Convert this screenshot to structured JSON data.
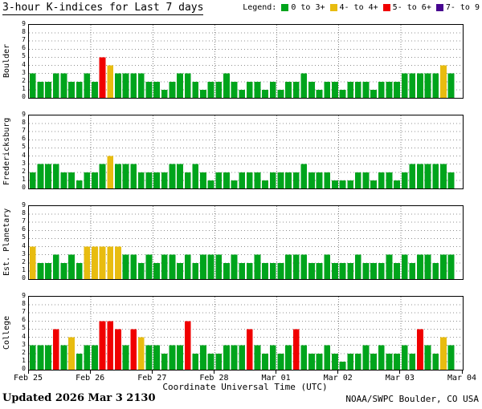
{
  "header": {
    "title": "3-hour K-indices for Last 7 days",
    "legend_label": "Legend:",
    "legend": [
      {
        "label": "0 to 3+",
        "color": "#00a41c"
      },
      {
        "label": "4- to 4+",
        "color": "#e8bc10"
      },
      {
        "label": "5- to 6+",
        "color": "#f00000"
      },
      {
        "label": "7- to 9",
        "color": "#470590"
      }
    ]
  },
  "chart_data": {
    "type": "bar",
    "title": "3-hour K-indices for Last 7 days",
    "xlabel": "Coordinate Universal Time (UTC)",
    "x_tick_labels": [
      "Feb 25",
      "Feb 26",
      "Feb 27",
      "Feb 28",
      "Mar 01",
      "Mar 02",
      "Mar 03",
      "Mar 04"
    ],
    "y_tick_labels": [
      0,
      1,
      2,
      3,
      4,
      5,
      6,
      7,
      8,
      9
    ],
    "ylim": [
      0,
      9
    ],
    "hours_per_bar": 3,
    "bars_per_day": 8,
    "grid": "dotted",
    "colors": {
      "green": "#00a41c",
      "yellow": "#e8bc10",
      "red": "#f00000",
      "purple": "#470590"
    },
    "color_bins": [
      {
        "label": "0 to 3+",
        "color": "green"
      },
      {
        "label": "4- to 4+",
        "color": "yellow"
      },
      {
        "label": "5- to 6+",
        "color": "red"
      },
      {
        "label": "7- to 9",
        "color": "purple"
      }
    ],
    "series": [
      {
        "name": "Boulder",
        "values": [
          3,
          2,
          2,
          3,
          3,
          2,
          2,
          3,
          2,
          5,
          4,
          3,
          3,
          3,
          3,
          2,
          2,
          1,
          2,
          3,
          3,
          2,
          1,
          2,
          2,
          3,
          2,
          1,
          2,
          2,
          1,
          2,
          1,
          2,
          2,
          3,
          2,
          1,
          2,
          2,
          1,
          2,
          2,
          2,
          1,
          2,
          2,
          2,
          3,
          3,
          3,
          3,
          3,
          4,
          3
        ]
      },
      {
        "name": "Fredericksburg",
        "values": [
          2,
          3,
          3,
          3,
          2,
          2,
          1,
          2,
          2,
          3,
          4,
          3,
          3,
          3,
          2,
          2,
          2,
          2,
          3,
          3,
          2,
          3,
          2,
          1,
          2,
          2,
          1,
          2,
          2,
          2,
          1,
          2,
          2,
          2,
          2,
          3,
          2,
          2,
          2,
          1,
          1,
          1,
          2,
          2,
          1,
          2,
          2,
          1,
          2,
          3,
          3,
          3,
          3,
          3,
          2
        ]
      },
      {
        "name": "Est. Planetary",
        "values": [
          4,
          2,
          2,
          3,
          2,
          3,
          2,
          4,
          4,
          4,
          4,
          4,
          3,
          3,
          2,
          3,
          2,
          3,
          3,
          2,
          3,
          2,
          3,
          3,
          3,
          2,
          3,
          2,
          2,
          3,
          2,
          2,
          2,
          3,
          3,
          3,
          2,
          2,
          3,
          2,
          2,
          2,
          3,
          2,
          2,
          2,
          3,
          2,
          3,
          2,
          3,
          3,
          2,
          3,
          3
        ]
      },
      {
        "name": "College",
        "values": [
          3,
          3,
          3,
          5,
          3,
          4,
          2,
          3,
          3,
          6,
          6,
          5,
          3,
          5,
          4,
          3,
          3,
          2,
          3,
          3,
          6,
          2,
          3,
          2,
          2,
          3,
          3,
          3,
          5,
          3,
          2,
          3,
          2,
          3,
          5,
          3,
          2,
          2,
          3,
          2,
          1,
          2,
          2,
          3,
          2,
          3,
          2,
          2,
          3,
          2,
          5,
          3,
          2,
          4,
          3
        ]
      }
    ]
  },
  "footer": {
    "updated_label": "Updated",
    "updated_value": "2026 Mar  3 2130",
    "credit": "NOAA/SWPC Boulder, CO USA"
  }
}
